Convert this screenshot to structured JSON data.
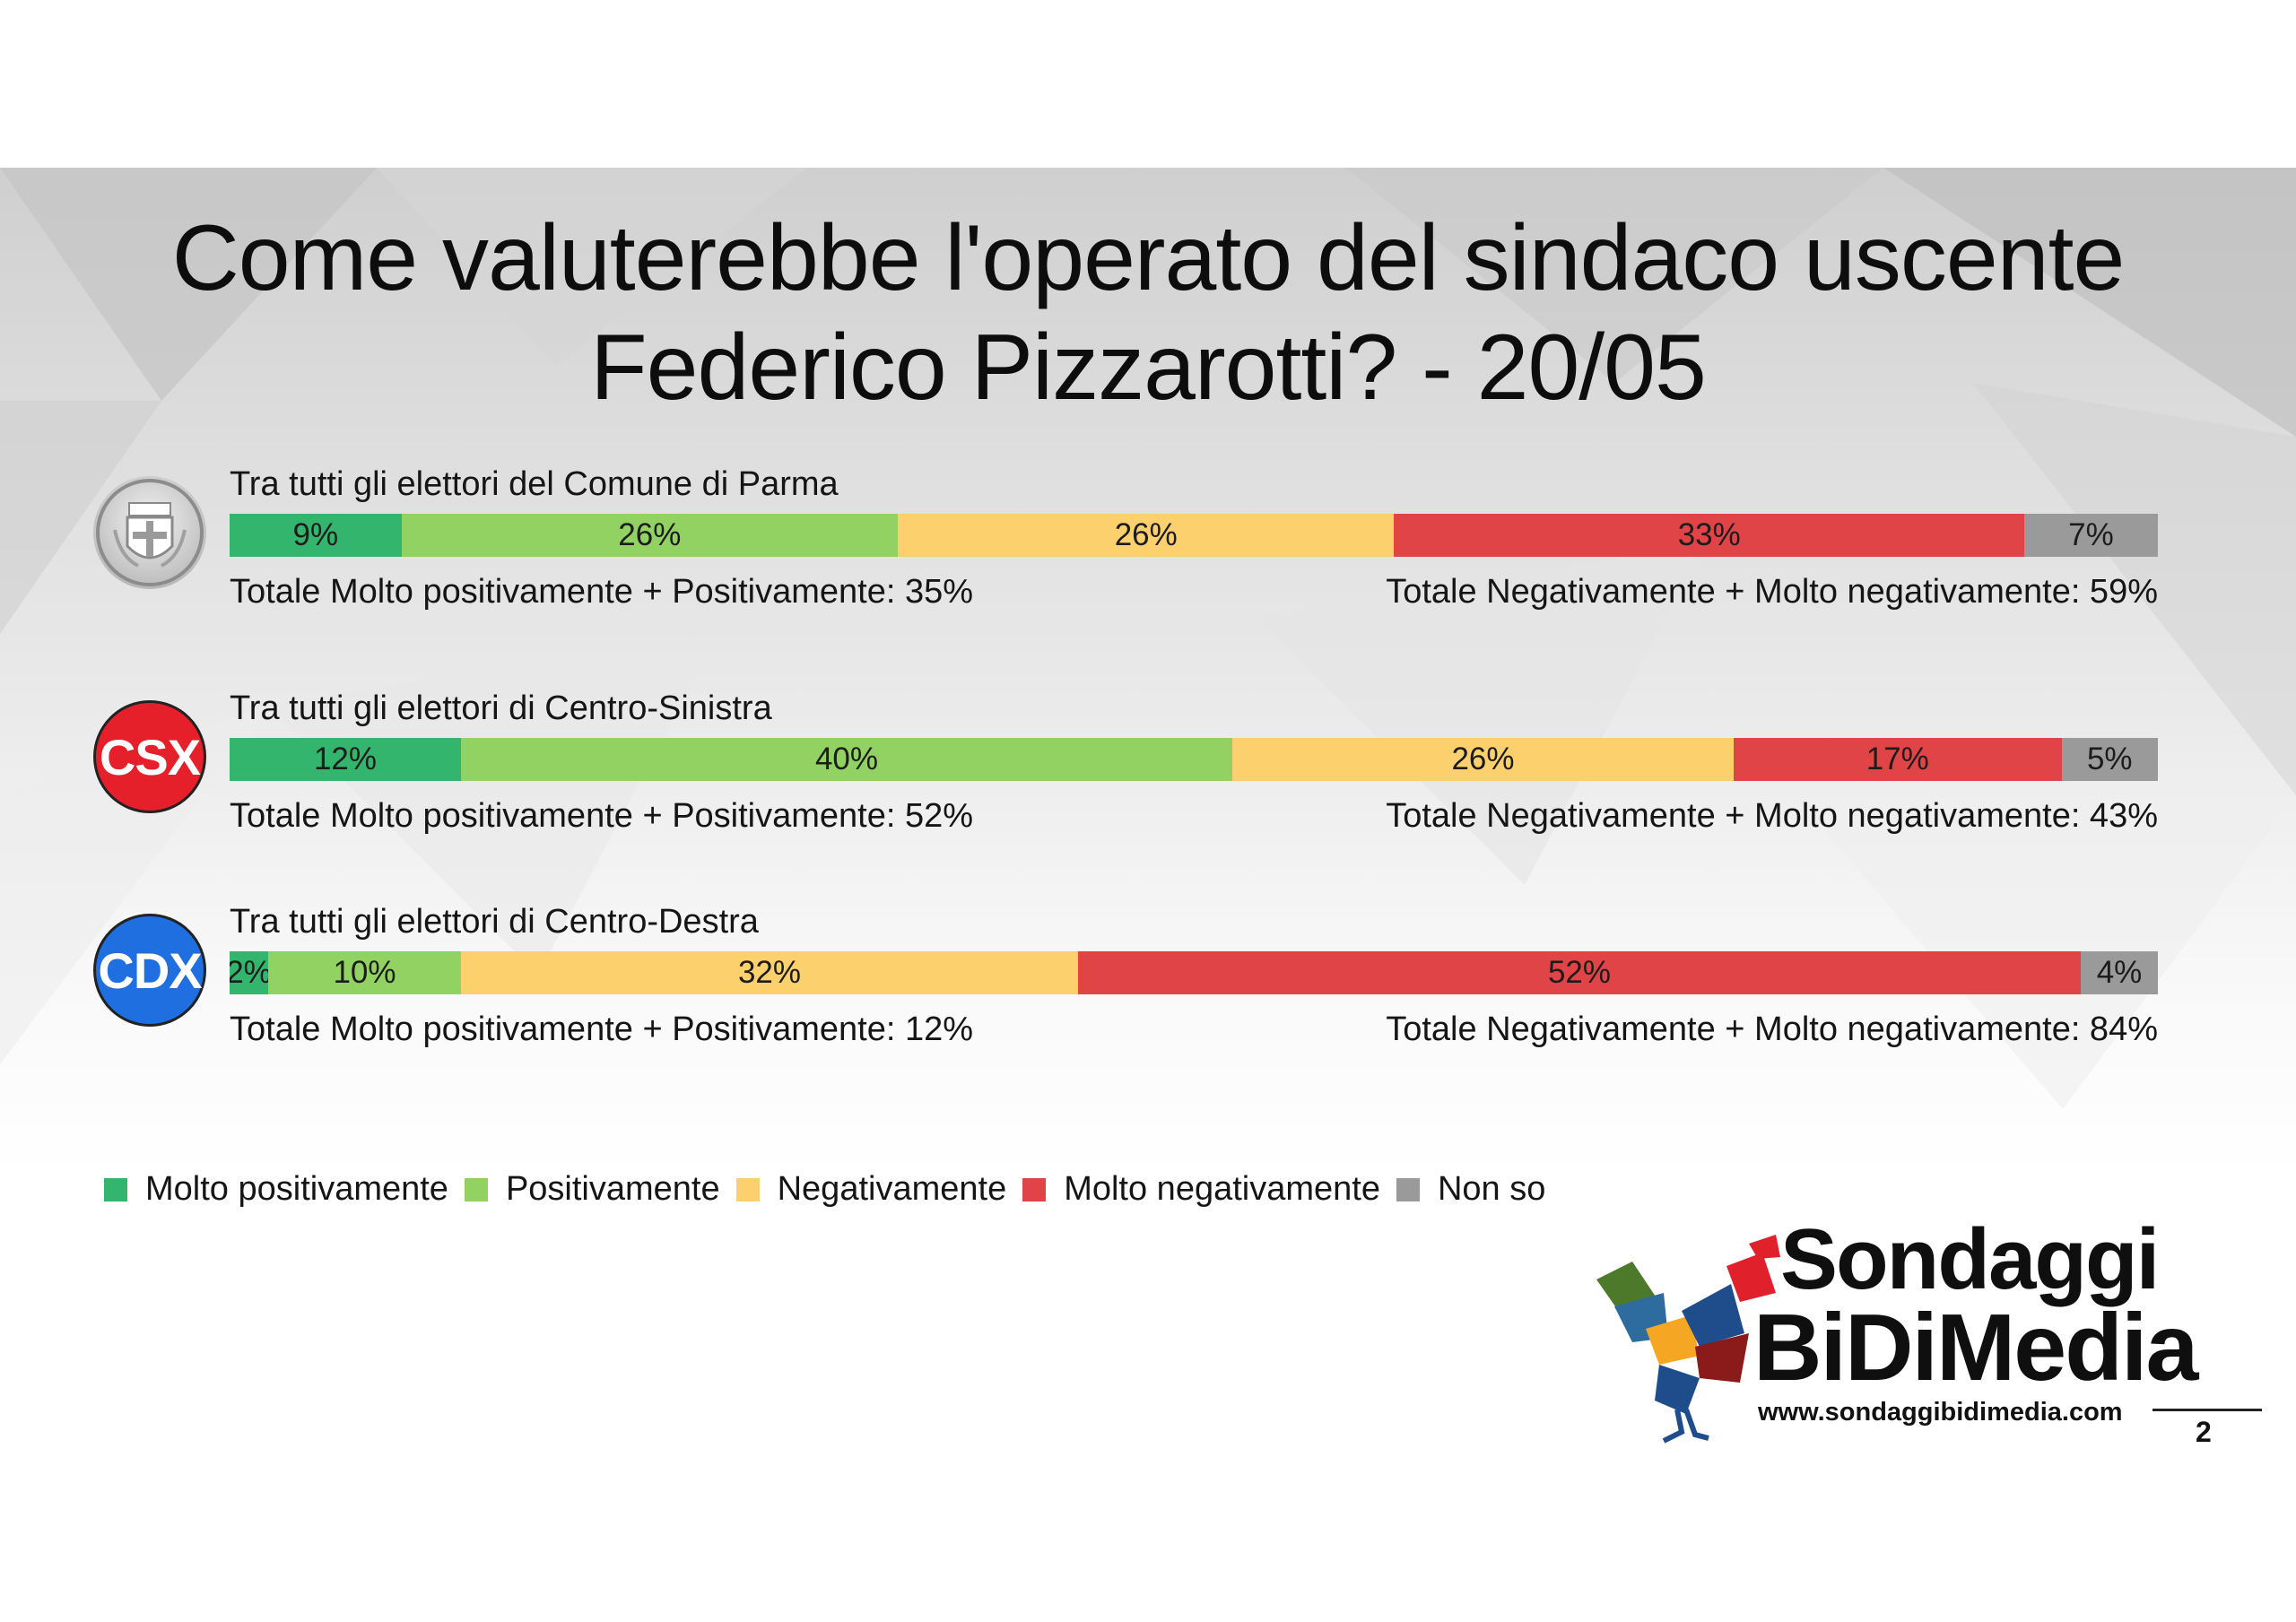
{
  "title_line1": "Come valuterebbe l'operato del sindaco uscente",
  "title_line2": "Federico Pizzarotti? - 20/05",
  "colors": {
    "molto_positivamente": "#33b56e",
    "positivamente": "#92d263",
    "negativamente": "#fdd06e",
    "molto_negativamente": "#e14446",
    "non_so": "#9a9a9a",
    "csx_badge": "#e5202a",
    "cdx_badge": "#1f6fe0"
  },
  "badges": {
    "csx": "CSX",
    "cdx": "CDX"
  },
  "chart_data": {
    "type": "bar",
    "orientation": "horizontal-stacked-100",
    "categories": [
      "Tra tutti gli elettori del Comune di Parma",
      "Tra tutti gli elettori di Centro-Sinistra",
      "Tra tutti gli elettori di Centro-Destra"
    ],
    "series": [
      {
        "name": "Molto positivamente",
        "values": [
          9,
          12,
          2
        ],
        "labels": [
          "9%",
          "12%",
          "2%"
        ]
      },
      {
        "name": "Positivamente",
        "values": [
          26,
          40,
          10
        ],
        "labels": [
          "26%",
          "40%",
          "10%"
        ]
      },
      {
        "name": "Negativamente",
        "values": [
          26,
          26,
          32
        ],
        "labels": [
          "26%",
          "26%",
          "32%"
        ]
      },
      {
        "name": "Molto negativamente",
        "values": [
          33,
          17,
          52
        ],
        "labels": [
          "33%",
          "17%",
          "52%"
        ]
      },
      {
        "name": "Non so",
        "values": [
          7,
          5,
          4
        ],
        "labels": [
          "7%",
          "5%",
          "4%"
        ]
      }
    ],
    "totals_positive": [
      "Totale Molto positivamente + Positivamente: 35%",
      "Totale Molto positivamente + Positivamente: 52%",
      "Totale Molto positivamente + Positivamente: 12%"
    ],
    "totals_negative": [
      "Totale Negativamente + Molto negativamente: 59%",
      "Totale Negativamente + Molto negativamente: 43%",
      "Totale Negativamente + Molto negativamente: 84%"
    ],
    "legend_position": "bottom-left"
  },
  "logo": {
    "line1": "Sondaggi",
    "line2": "BiDiMedia",
    "url": "www.sondaggibidimedia.com"
  },
  "page_number": "2"
}
